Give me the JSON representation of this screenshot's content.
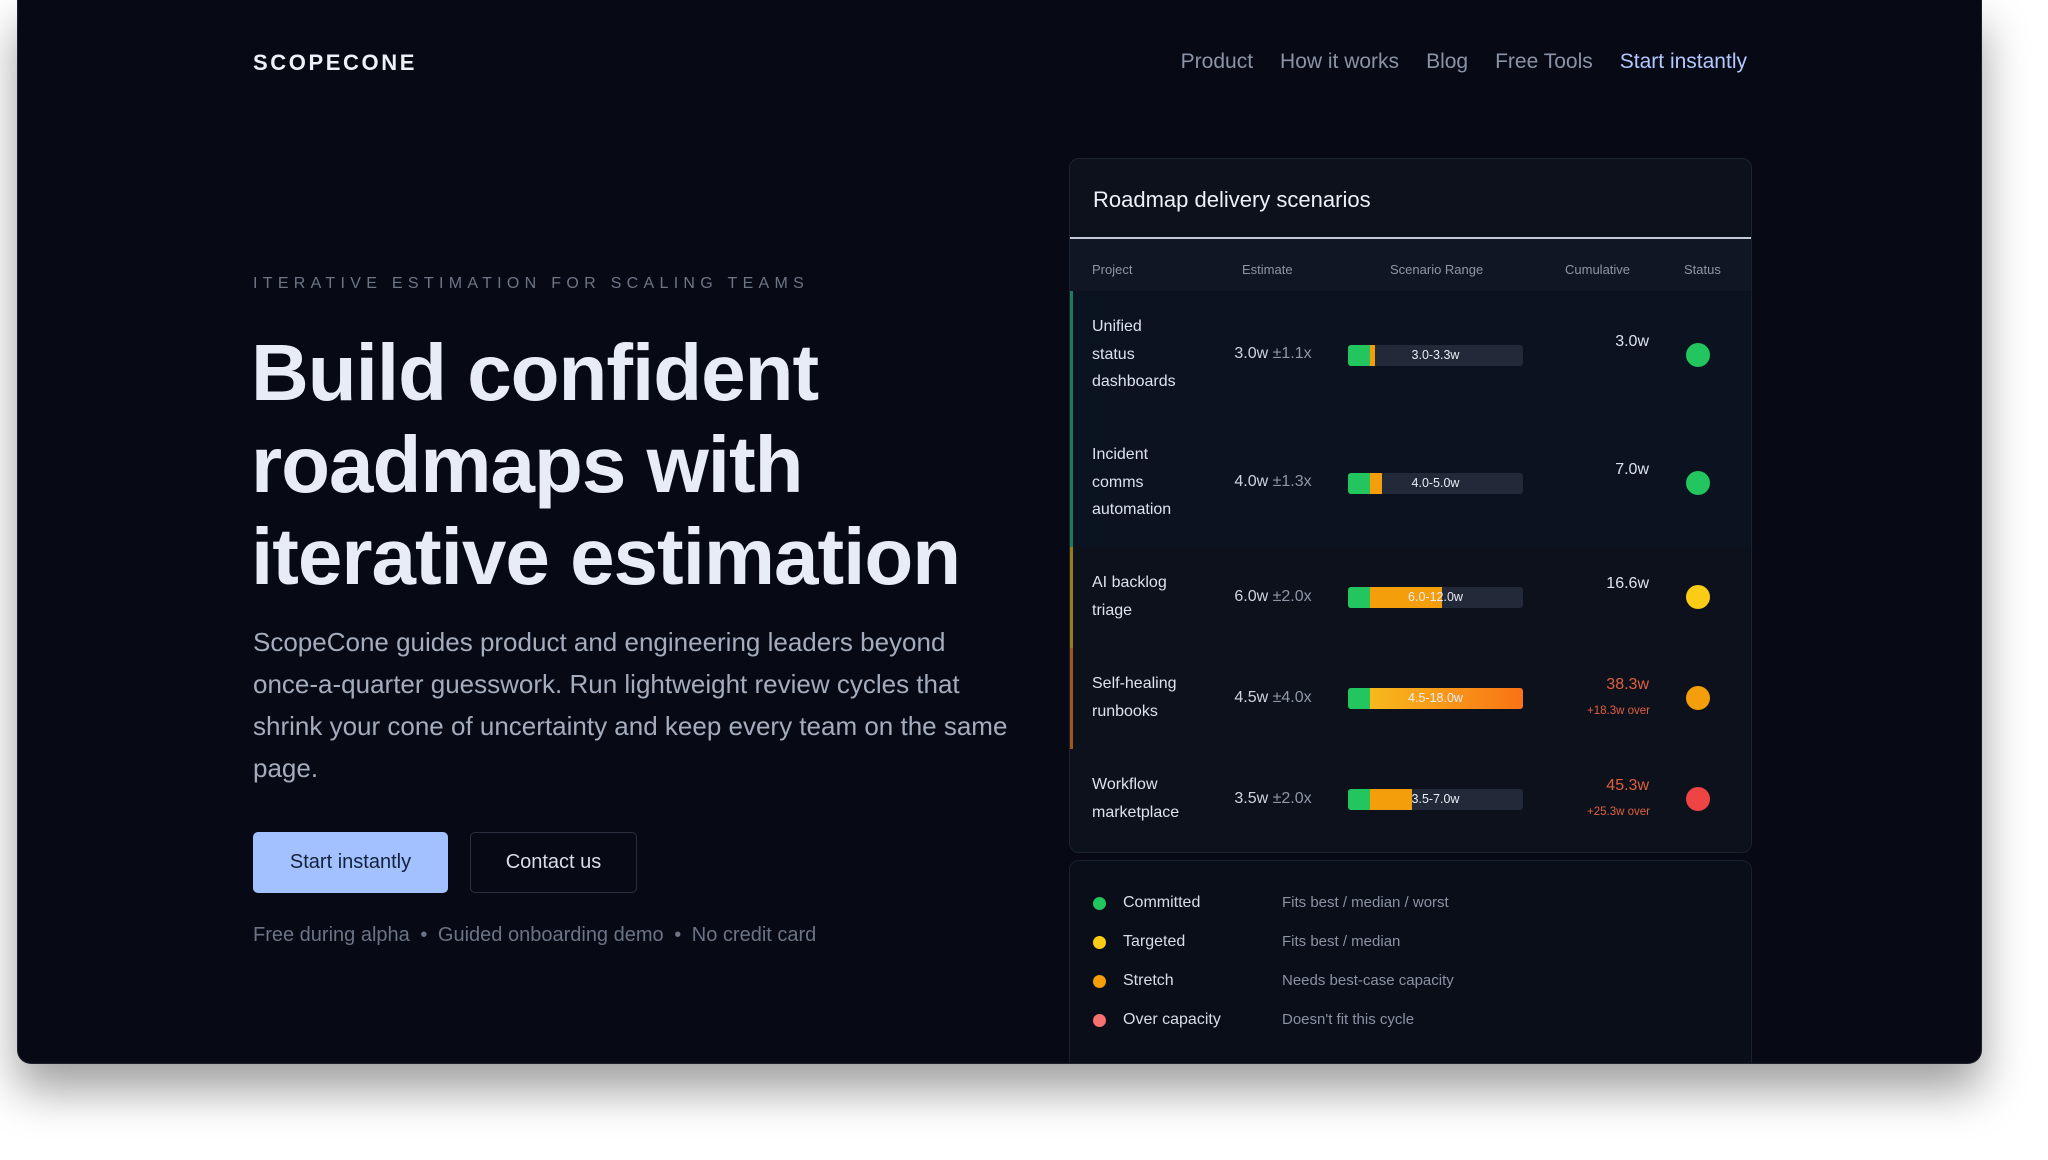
{
  "brand": {
    "name": "SCOPECONE"
  },
  "nav": {
    "links": [
      "Product",
      "How it works",
      "Blog",
      "Free Tools"
    ],
    "cta": "Start instantly"
  },
  "hero": {
    "eyebrow": "ITERATIVE ESTIMATION FOR SCALING TEAMS",
    "headline_lines": [
      "Build confident",
      "roadmaps with",
      "iterative estimation"
    ],
    "intro": "ScopeCone guides product and engineering leaders beyond once-a-quarter guesswork. Run lightweight review cycles that shrink your cone of uncertainty and keep every team on the same page.",
    "primary_button": "Start instantly",
    "secondary_button": "Contact us",
    "notes": [
      "Free during alpha",
      "Guided onboarding demo",
      "No credit card"
    ],
    "note_separator": "•"
  },
  "scenarios": {
    "title": "Roadmap delivery scenarios",
    "columns": [
      "Project",
      "Estimate",
      "Scenario Range",
      "Cumulative",
      "Status"
    ],
    "rows": [
      {
        "project": [
          "Unified",
          "status",
          "dashboards"
        ],
        "estimate": "3.0w",
        "spread": "±1.1x",
        "range": "3.0-3.3w",
        "range_min": 3.0,
        "range_max": 3.3,
        "cumulative": "3.0w",
        "over": "",
        "status": "committed",
        "status_color": "#22c55e"
      },
      {
        "project": [
          "Incident",
          "comms",
          "automation"
        ],
        "estimate": "4.0w",
        "spread": "±1.3x",
        "range": "4.0-5.0w",
        "range_min": 4.0,
        "range_max": 5.0,
        "cumulative": "7.0w",
        "over": "",
        "status": "committed",
        "status_color": "#22c55e"
      },
      {
        "project": [
          "AI backlog",
          "triage"
        ],
        "estimate": "6.0w",
        "spread": "±2.0x",
        "range": "6.0-12.0w",
        "range_min": 6.0,
        "range_max": 12.0,
        "cumulative": "16.6w",
        "over": "",
        "status": "targeted",
        "status_color": "#facc15"
      },
      {
        "project": [
          "Self-healing",
          "runbooks"
        ],
        "estimate": "4.5w",
        "spread": "±4.0x",
        "range": "4.5-18.0w",
        "range_min": 4.5,
        "range_max": 18.0,
        "cumulative": "38.3w",
        "over": "+18.3w over",
        "status": "stretch",
        "status_color": "#f59e0b"
      },
      {
        "project": [
          "Workflow",
          "marketplace"
        ],
        "estimate": "3.5w",
        "spread": "±2.0x",
        "range": "3.5-7.0w",
        "range_min": 3.5,
        "range_max": 7.0,
        "cumulative": "45.3w",
        "over": "+25.3w over",
        "status": "over-capacity",
        "status_color": "#ef4444"
      }
    ]
  },
  "legend": {
    "items": [
      {
        "name": "Committed",
        "description": "Fits best / median / worst",
        "color": "#22c55e"
      },
      {
        "name": "Targeted",
        "description": "Fits best / median",
        "color": "#facc15"
      },
      {
        "name": "Stretch",
        "description": "Needs best-case capacity",
        "color": "#f59e0b"
      },
      {
        "name": "Over capacity",
        "description": "Doesn't fit this cycle",
        "color": "#f87171"
      }
    ]
  },
  "colors": {
    "accent": "#a3c1ff",
    "committed": "#22c55e",
    "targeted": "#facc15",
    "stretch": "#f59e0b",
    "over_capacity": "#ef4444",
    "over_text": "#e0603e"
  }
}
